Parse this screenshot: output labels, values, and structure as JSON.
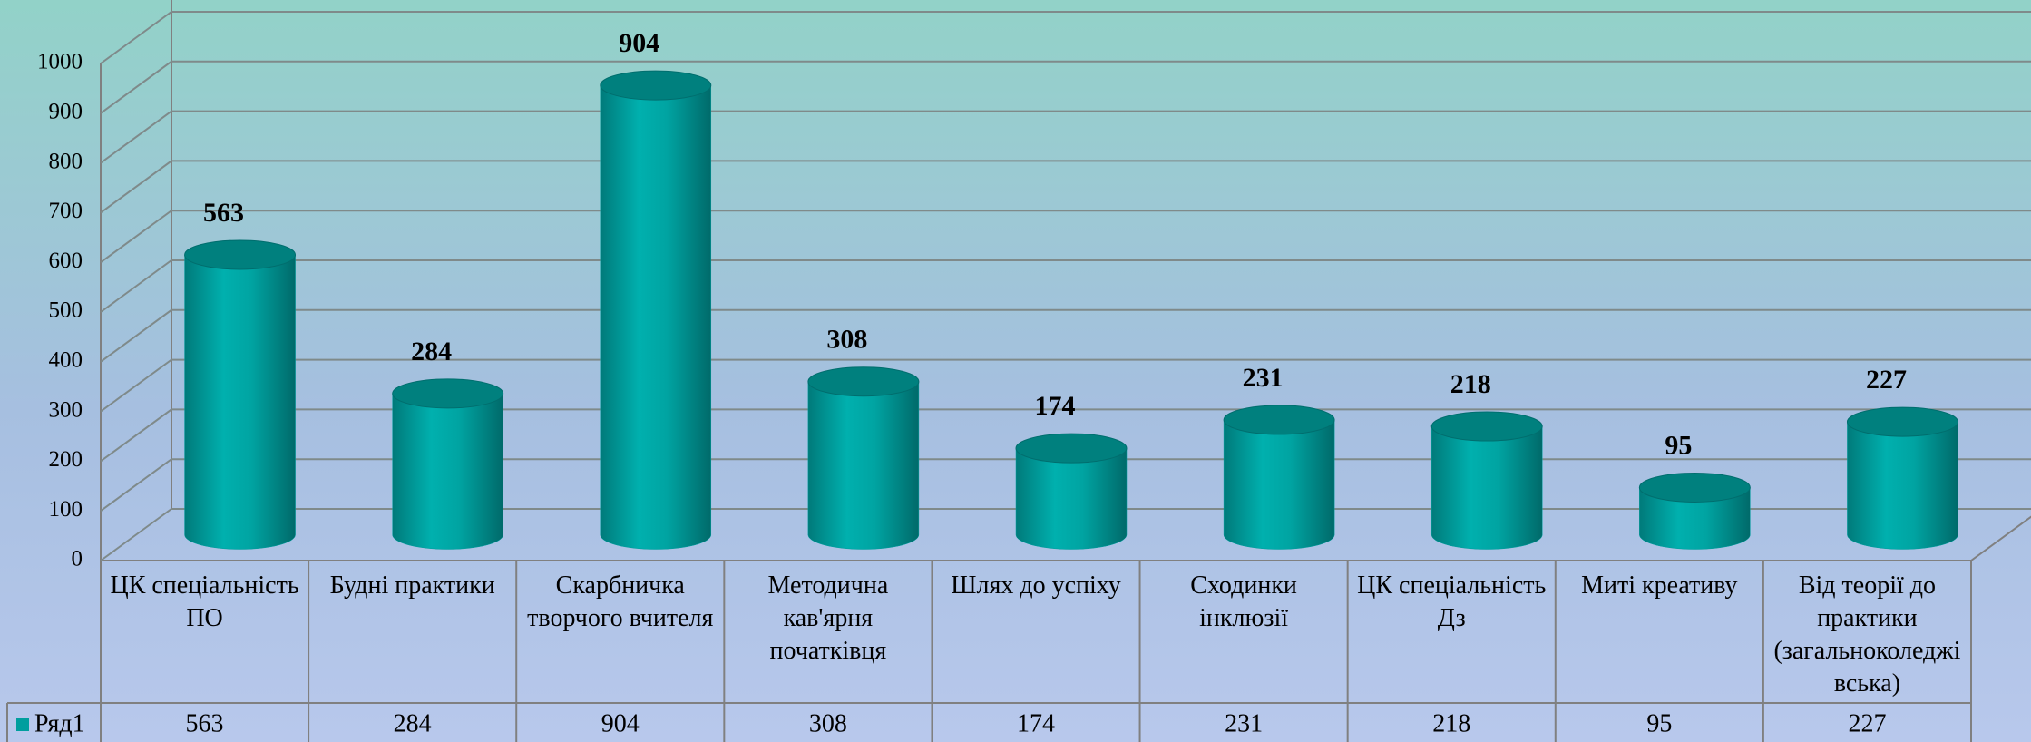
{
  "chart_data": {
    "type": "bar",
    "bar_style": "cylinder",
    "categories": [
      "ЦК спеціальність ПО",
      "Будні практики",
      "Скарбничка творчого вчителя",
      "Методична кав'ярня початківця",
      "Шлях до успіху",
      "Сходинки інклюзії",
      "ЦК спеціальність Дз",
      "Миті креативу",
      "Від теорії до практики (загальноколеджівська)"
    ],
    "series": [
      {
        "name": "Ряд1",
        "color": "#009e9e",
        "values": [
          563,
          284,
          904,
          308,
          174,
          231,
          218,
          95,
          227
        ]
      }
    ],
    "ylim": [
      0,
      1000
    ],
    "yticks": [
      0,
      100,
      200,
      300,
      400,
      500,
      600,
      700,
      800,
      900,
      1000
    ],
    "grid": true,
    "data_table": true
  }
}
